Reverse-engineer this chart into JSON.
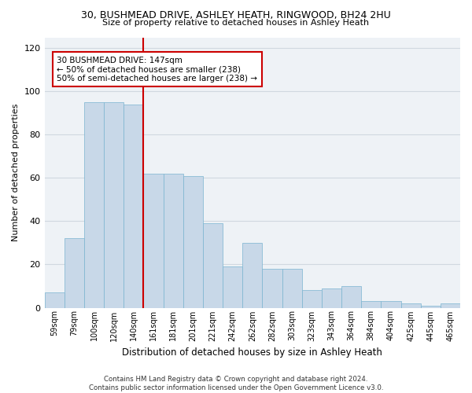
{
  "title_line1": "30, BUSHMEAD DRIVE, ASHLEY HEATH, RINGWOOD, BH24 2HU",
  "title_line2": "Size of property relative to detached houses in Ashley Heath",
  "xlabel": "Distribution of detached houses by size in Ashley Heath",
  "ylabel": "Number of detached properties",
  "categories": [
    "59sqm",
    "79sqm",
    "100sqm",
    "120sqm",
    "140sqm",
    "161sqm",
    "181sqm",
    "201sqm",
    "221sqm",
    "242sqm",
    "262sqm",
    "282sqm",
    "303sqm",
    "323sqm",
    "343sqm",
    "364sqm",
    "384sqm",
    "404sqm",
    "425sqm",
    "445sqm",
    "465sqm"
  ],
  "values": [
    7,
    32,
    95,
    95,
    94,
    62,
    62,
    61,
    39,
    19,
    30,
    18,
    18,
    8,
    9,
    10,
    3,
    3,
    2,
    1,
    2
  ],
  "bar_color": "#c8d8e8",
  "bar_edgecolor": "#7ab4d0",
  "grid_color": "#d0d8e0",
  "background_color": "#eef2f6",
  "annotation_text": "30 BUSHMEAD DRIVE: 147sqm\n← 50% of detached houses are smaller (238)\n50% of semi-detached houses are larger (238) →",
  "annotation_box_color": "#cc0000",
  "vline_x_index": 4.5,
  "vline_color": "#cc0000",
  "ylim": [
    0,
    125
  ],
  "yticks": [
    0,
    20,
    40,
    60,
    80,
    100,
    120
  ],
  "footnote": "Contains HM Land Registry data © Crown copyright and database right 2024.\nContains public sector information licensed under the Open Government Licence v3.0."
}
